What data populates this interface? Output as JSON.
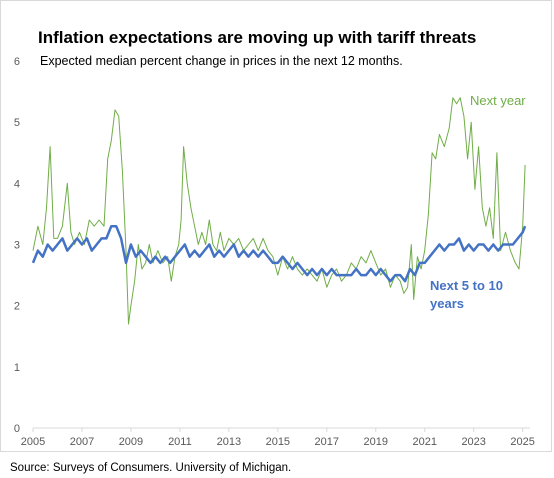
{
  "chart_data": {
    "type": "line",
    "title": "Inflation expectations are moving up with tariff threats",
    "subtitle": "Expected median percent change in prices in the next 12 months.",
    "source": "Source: Surveys of Consumers. University of Michigan.",
    "xlabel": "",
    "ylabel": "",
    "xlim": [
      2005,
      2025.3
    ],
    "ylim": [
      0,
      6
    ],
    "x_ticks": [
      2005,
      2007,
      2009,
      2011,
      2013,
      2015,
      2017,
      2019,
      2021,
      2023,
      2025
    ],
    "y_ticks": [
      0,
      1,
      2,
      3,
      4,
      5,
      6
    ],
    "grid": false,
    "colors": {
      "next_year": "#70ad47",
      "long_run": "#4472c4",
      "axis": "#d9d9d9",
      "tick_text": "#595959"
    },
    "series": [
      {
        "name": "Next year",
        "label_lines": [
          "Next year"
        ],
        "color": "#70ad47",
        "points": [
          [
            2005.0,
            2.9
          ],
          [
            2005.2,
            3.3
          ],
          [
            2005.4,
            3.0
          ],
          [
            2005.55,
            3.6
          ],
          [
            2005.7,
            4.6
          ],
          [
            2005.85,
            3.1
          ],
          [
            2006.0,
            3.1
          ],
          [
            2006.2,
            3.3
          ],
          [
            2006.4,
            4.0
          ],
          [
            2006.55,
            3.2
          ],
          [
            2006.7,
            3.0
          ],
          [
            2006.9,
            3.2
          ],
          [
            2007.1,
            3.0
          ],
          [
            2007.3,
            3.4
          ],
          [
            2007.5,
            3.3
          ],
          [
            2007.7,
            3.4
          ],
          [
            2007.9,
            3.3
          ],
          [
            2008.05,
            4.4
          ],
          [
            2008.2,
            4.7
          ],
          [
            2008.35,
            5.2
          ],
          [
            2008.5,
            5.1
          ],
          [
            2008.65,
            4.2
          ],
          [
            2008.8,
            2.9
          ],
          [
            2008.9,
            1.7
          ],
          [
            2009.0,
            2.0
          ],
          [
            2009.15,
            2.4
          ],
          [
            2009.3,
            3.0
          ],
          [
            2009.45,
            2.6
          ],
          [
            2009.6,
            2.7
          ],
          [
            2009.75,
            3.0
          ],
          [
            2009.9,
            2.7
          ],
          [
            2010.1,
            2.9
          ],
          [
            2010.3,
            2.7
          ],
          [
            2010.5,
            2.8
          ],
          [
            2010.65,
            2.4
          ],
          [
            2010.8,
            2.8
          ],
          [
            2010.95,
            3.0
          ],
          [
            2011.05,
            3.4
          ],
          [
            2011.15,
            4.6
          ],
          [
            2011.3,
            4.0
          ],
          [
            2011.45,
            3.6
          ],
          [
            2011.6,
            3.3
          ],
          [
            2011.75,
            3.0
          ],
          [
            2011.9,
            3.2
          ],
          [
            2012.05,
            3.0
          ],
          [
            2012.2,
            3.4
          ],
          [
            2012.35,
            3.0
          ],
          [
            2012.5,
            2.9
          ],
          [
            2012.65,
            3.2
          ],
          [
            2012.8,
            2.9
          ],
          [
            2013.0,
            3.1
          ],
          [
            2013.2,
            3.0
          ],
          [
            2013.4,
            3.1
          ],
          [
            2013.6,
            2.9
          ],
          [
            2013.8,
            3.0
          ],
          [
            2014.0,
            3.1
          ],
          [
            2014.2,
            2.9
          ],
          [
            2014.4,
            3.1
          ],
          [
            2014.6,
            2.9
          ],
          [
            2014.8,
            2.8
          ],
          [
            2015.0,
            2.5
          ],
          [
            2015.2,
            2.8
          ],
          [
            2015.4,
            2.6
          ],
          [
            2015.6,
            2.8
          ],
          [
            2015.8,
            2.6
          ],
          [
            2016.0,
            2.5
          ],
          [
            2016.2,
            2.6
          ],
          [
            2016.4,
            2.5
          ],
          [
            2016.6,
            2.4
          ],
          [
            2016.8,
            2.6
          ],
          [
            2017.0,
            2.3
          ],
          [
            2017.2,
            2.5
          ],
          [
            2017.4,
            2.6
          ],
          [
            2017.6,
            2.4
          ],
          [
            2017.8,
            2.5
          ],
          [
            2018.0,
            2.7
          ],
          [
            2018.2,
            2.6
          ],
          [
            2018.4,
            2.8
          ],
          [
            2018.6,
            2.7
          ],
          [
            2018.8,
            2.9
          ],
          [
            2019.0,
            2.7
          ],
          [
            2019.2,
            2.5
          ],
          [
            2019.4,
            2.6
          ],
          [
            2019.6,
            2.3
          ],
          [
            2019.8,
            2.5
          ],
          [
            2020.0,
            2.4
          ],
          [
            2020.15,
            2.2
          ],
          [
            2020.3,
            2.3
          ],
          [
            2020.45,
            3.0
          ],
          [
            2020.55,
            2.1
          ],
          [
            2020.7,
            2.8
          ],
          [
            2020.85,
            2.6
          ],
          [
            2021.0,
            2.9
          ],
          [
            2021.15,
            3.5
          ],
          [
            2021.3,
            4.5
          ],
          [
            2021.45,
            4.4
          ],
          [
            2021.6,
            4.8
          ],
          [
            2021.8,
            4.6
          ],
          [
            2022.0,
            4.9
          ],
          [
            2022.15,
            5.4
          ],
          [
            2022.3,
            5.3
          ],
          [
            2022.45,
            5.4
          ],
          [
            2022.6,
            5.1
          ],
          [
            2022.75,
            4.4
          ],
          [
            2022.9,
            5.0
          ],
          [
            2023.05,
            3.9
          ],
          [
            2023.2,
            4.6
          ],
          [
            2023.35,
            3.6
          ],
          [
            2023.5,
            3.3
          ],
          [
            2023.65,
            3.6
          ],
          [
            2023.8,
            3.1
          ],
          [
            2023.95,
            4.5
          ],
          [
            2024.1,
            2.9
          ],
          [
            2024.3,
            3.2
          ],
          [
            2024.5,
            2.9
          ],
          [
            2024.7,
            2.7
          ],
          [
            2024.85,
            2.6
          ],
          [
            2025.0,
            3.3
          ],
          [
            2025.1,
            4.3
          ]
        ]
      },
      {
        "name": "Next 5 to 10 years",
        "label_lines": [
          "Next 5 to 10",
          "years"
        ],
        "color": "#4472c4",
        "points": [
          [
            2005.0,
            2.7
          ],
          [
            2005.2,
            2.9
          ],
          [
            2005.4,
            2.8
          ],
          [
            2005.6,
            3.0
          ],
          [
            2005.8,
            2.9
          ],
          [
            2006.0,
            3.0
          ],
          [
            2006.2,
            3.1
          ],
          [
            2006.4,
            2.9
          ],
          [
            2006.6,
            3.0
          ],
          [
            2006.8,
            3.1
          ],
          [
            2007.0,
            3.0
          ],
          [
            2007.2,
            3.1
          ],
          [
            2007.4,
            2.9
          ],
          [
            2007.6,
            3.0
          ],
          [
            2007.8,
            3.1
          ],
          [
            2008.0,
            3.1
          ],
          [
            2008.2,
            3.3
          ],
          [
            2008.4,
            3.3
          ],
          [
            2008.6,
            3.1
          ],
          [
            2008.8,
            2.7
          ],
          [
            2009.0,
            3.0
          ],
          [
            2009.2,
            2.8
          ],
          [
            2009.4,
            2.9
          ],
          [
            2009.6,
            2.8
          ],
          [
            2009.8,
            2.7
          ],
          [
            2010.0,
            2.8
          ],
          [
            2010.2,
            2.7
          ],
          [
            2010.4,
            2.8
          ],
          [
            2010.6,
            2.7
          ],
          [
            2010.8,
            2.8
          ],
          [
            2011.0,
            2.9
          ],
          [
            2011.2,
            3.0
          ],
          [
            2011.4,
            2.8
          ],
          [
            2011.6,
            2.9
          ],
          [
            2011.8,
            2.8
          ],
          [
            2012.0,
            2.9
          ],
          [
            2012.2,
            3.0
          ],
          [
            2012.4,
            2.8
          ],
          [
            2012.6,
            2.9
          ],
          [
            2012.8,
            2.8
          ],
          [
            2013.0,
            2.9
          ],
          [
            2013.2,
            3.0
          ],
          [
            2013.4,
            2.8
          ],
          [
            2013.6,
            2.9
          ],
          [
            2013.8,
            2.8
          ],
          [
            2014.0,
            2.9
          ],
          [
            2014.2,
            2.8
          ],
          [
            2014.4,
            2.9
          ],
          [
            2014.6,
            2.8
          ],
          [
            2014.8,
            2.7
          ],
          [
            2015.0,
            2.7
          ],
          [
            2015.2,
            2.8
          ],
          [
            2015.4,
            2.7
          ],
          [
            2015.6,
            2.6
          ],
          [
            2015.8,
            2.7
          ],
          [
            2016.0,
            2.6
          ],
          [
            2016.2,
            2.5
          ],
          [
            2016.4,
            2.6
          ],
          [
            2016.6,
            2.5
          ],
          [
            2016.8,
            2.6
          ],
          [
            2017.0,
            2.5
          ],
          [
            2017.2,
            2.6
          ],
          [
            2017.4,
            2.5
          ],
          [
            2017.6,
            2.5
          ],
          [
            2017.8,
            2.5
          ],
          [
            2018.0,
            2.5
          ],
          [
            2018.2,
            2.6
          ],
          [
            2018.4,
            2.5
          ],
          [
            2018.6,
            2.5
          ],
          [
            2018.8,
            2.6
          ],
          [
            2019.0,
            2.5
          ],
          [
            2019.2,
            2.6
          ],
          [
            2019.4,
            2.5
          ],
          [
            2019.6,
            2.4
          ],
          [
            2019.8,
            2.5
          ],
          [
            2020.0,
            2.5
          ],
          [
            2020.2,
            2.4
          ],
          [
            2020.4,
            2.6
          ],
          [
            2020.6,
            2.5
          ],
          [
            2020.8,
            2.7
          ],
          [
            2021.0,
            2.7
          ],
          [
            2021.2,
            2.8
          ],
          [
            2021.4,
            2.9
          ],
          [
            2021.6,
            3.0
          ],
          [
            2021.8,
            2.9
          ],
          [
            2022.0,
            3.0
          ],
          [
            2022.2,
            3.0
          ],
          [
            2022.4,
            3.1
          ],
          [
            2022.6,
            2.9
          ],
          [
            2022.8,
            3.0
          ],
          [
            2023.0,
            2.9
          ],
          [
            2023.2,
            3.0
          ],
          [
            2023.4,
            3.0
          ],
          [
            2023.6,
            2.9
          ],
          [
            2023.8,
            3.0
          ],
          [
            2024.0,
            2.9
          ],
          [
            2024.2,
            3.0
          ],
          [
            2024.4,
            3.0
          ],
          [
            2024.6,
            3.0
          ],
          [
            2024.8,
            3.1
          ],
          [
            2025.0,
            3.2
          ],
          [
            2025.1,
            3.3
          ]
        ]
      }
    ]
  }
}
